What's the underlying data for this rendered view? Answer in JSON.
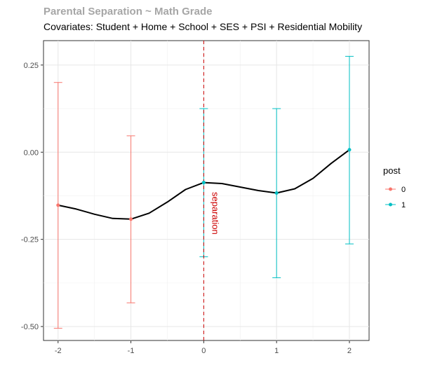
{
  "chart_data": {
    "type": "line",
    "title": "Parental Separation ~ Math Grade",
    "subtitle": "Covariates: Student + Home + School + SES + PSI + Residential Mobility",
    "xlabel": "",
    "ylabel": "",
    "xlim": [
      -2.2,
      2.27
    ],
    "ylim": [
      -0.54,
      0.32
    ],
    "x_ticks": [
      -2,
      -1,
      0,
      1,
      2
    ],
    "x_tick_labels": [
      "-2",
      "-1",
      "0",
      "1",
      "2"
    ],
    "y_ticks": [
      -0.5,
      -0.25,
      0.0,
      0.25
    ],
    "y_tick_labels": [
      "-0.50",
      "-0.25",
      "0.00",
      "0.25"
    ],
    "grid": true,
    "legend": {
      "title": "post",
      "position": "right",
      "entries": [
        {
          "label": "0",
          "color": "#f8766d"
        },
        {
          "label": "1",
          "color": "#00bfc4"
        }
      ]
    },
    "series": [
      {
        "name": "0",
        "color": "#f8766d",
        "points": [
          {
            "x": -2,
            "y": -0.152,
            "lower": -0.505,
            "upper": 0.2
          },
          {
            "x": -1,
            "y": -0.192,
            "lower": -0.432,
            "upper": 0.047
          }
        ]
      },
      {
        "name": "1",
        "color": "#00bfc4",
        "points": [
          {
            "x": 0,
            "y": -0.087,
            "lower": -0.3,
            "upper": 0.125
          },
          {
            "x": 1,
            "y": -0.117,
            "lower": -0.36,
            "upper": 0.125
          },
          {
            "x": 2,
            "y": 0.007,
            "lower": -0.263,
            "upper": 0.275
          }
        ]
      }
    ],
    "smooth_line": {
      "color": "#000000",
      "x": [
        -2,
        -1.75,
        -1.5,
        -1.25,
        -1,
        -0.75,
        -0.5,
        -0.25,
        0,
        0.25,
        0.5,
        0.75,
        1,
        1.25,
        1.5,
        1.75,
        2
      ],
      "y": [
        -0.152,
        -0.163,
        -0.178,
        -0.19,
        -0.192,
        -0.175,
        -0.143,
        -0.107,
        -0.087,
        -0.09,
        -0.1,
        -0.11,
        -0.117,
        -0.105,
        -0.075,
        -0.032,
        0.007
      ]
    },
    "vline": {
      "x": 0,
      "color": "#cc0000",
      "style": "dashed",
      "label": "separation"
    }
  }
}
